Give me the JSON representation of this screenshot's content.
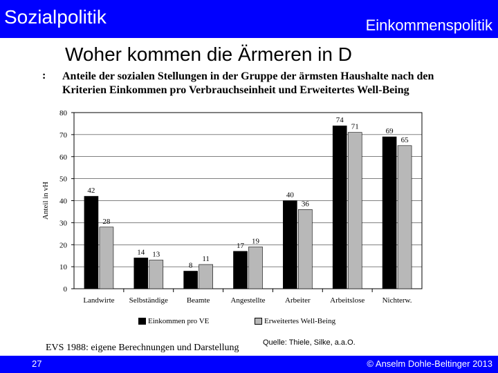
{
  "header": {
    "left_title": "Sozialpolitik",
    "right_title": "Einkommenspolitik"
  },
  "slide_title": "Woher kommen die Ärmeren in D",
  "figure_mark": ":",
  "figure_title_line1": "Anteile der sozialen Stellungen in der Gruppe der ärmsten Haushalte nach den",
  "figure_title_line2": "Kriterien Einkommen pro Verbrauchseinheit und Erweitertes Well-Being",
  "source_note": "Quelle: Thiele, Silke, a.a.O.",
  "evs_note": "EVS 1988: eigene Berechnungen und Darstellung",
  "footer": {
    "page_number": "27",
    "copyright": "© Anselm Dohle-Beltinger 2013"
  },
  "colors": {
    "bar_bg": "#0000ff",
    "series1": "#000000",
    "series2": "#b8b8b8"
  },
  "chart_data": {
    "type": "bar",
    "categories": [
      "Landwirte",
      "Selbständige",
      "Beamte",
      "Angestellte",
      "Arbeiter",
      "Arbeitslose",
      "Nichterw."
    ],
    "series": [
      {
        "name": "Einkommen  pro VE",
        "values": [
          42,
          14,
          8,
          17,
          40,
          74,
          69
        ]
      },
      {
        "name": "Erweitertes Well-Being",
        "values": [
          28,
          13,
          11,
          19,
          36,
          71,
          65
        ]
      }
    ],
    "ylabel": "Anteil in vH",
    "xlabel": "",
    "ylim": [
      0,
      80
    ],
    "yticks": [
      0,
      10,
      20,
      30,
      40,
      50,
      60,
      70,
      80
    ],
    "grid": true,
    "legend_position": "bottom"
  }
}
